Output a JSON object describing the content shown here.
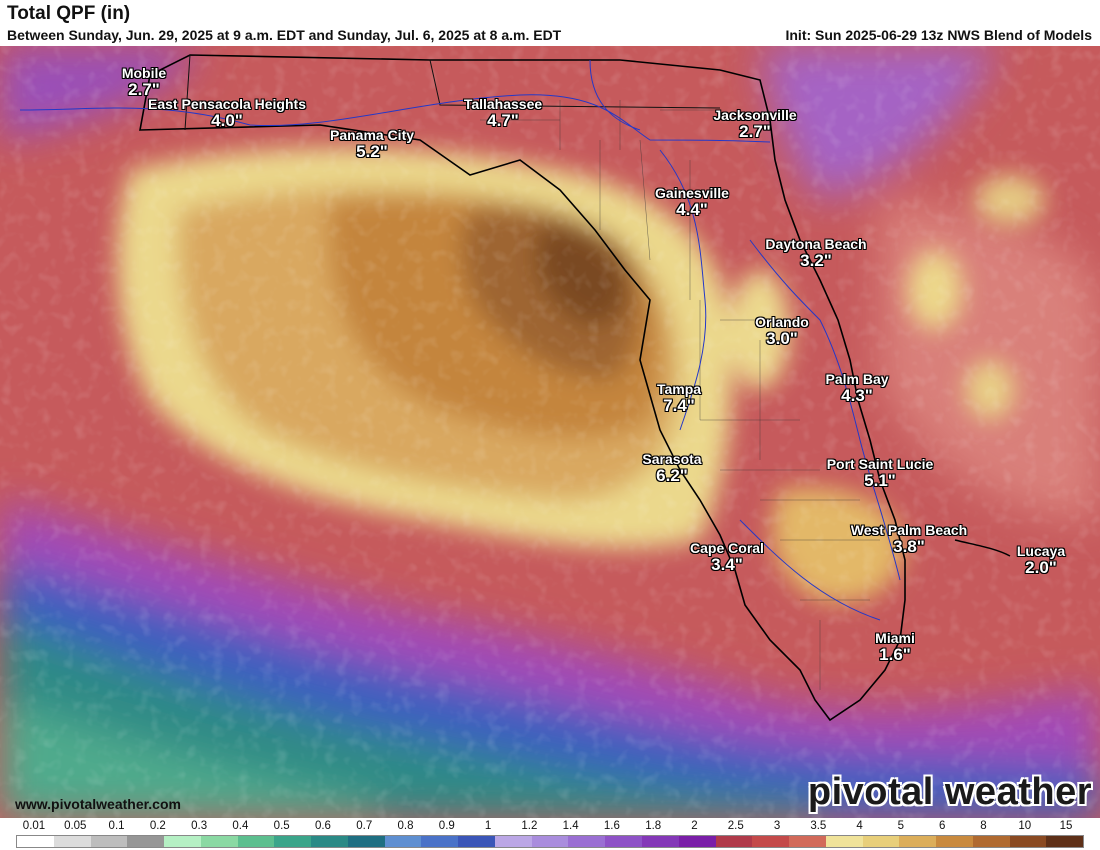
{
  "header": {
    "title": "Total QPF (in)",
    "subtitle": "Between Sunday, Jun. 29, 2025 at 9 a.m. EDT and Sunday, Jul. 6, 2025 at 8 a.m. EDT",
    "init": "Init: Sun 2025-06-29 13z NWS Blend of Models"
  },
  "cities": [
    {
      "name": "Mobile",
      "value": "2.7\""
    },
    {
      "name": "East Pensacola Heights",
      "value": "4.0\""
    },
    {
      "name": "Panama City",
      "value": "5.2\""
    },
    {
      "name": "Tallahassee",
      "value": "4.7\""
    },
    {
      "name": "Jacksonville",
      "value": "2.7\""
    },
    {
      "name": "Gainesville",
      "value": "4.4\""
    },
    {
      "name": "Daytona Beach",
      "value": "3.2\""
    },
    {
      "name": "Orlando",
      "value": "3.0\""
    },
    {
      "name": "Tampa",
      "value": "7.4\""
    },
    {
      "name": "Palm Bay",
      "value": "4.3\""
    },
    {
      "name": "Sarasota",
      "value": "6.2\""
    },
    {
      "name": "Port Saint Lucie",
      "value": "5.1\""
    },
    {
      "name": "West Palm Beach",
      "value": "3.8\""
    },
    {
      "name": "Cape Coral",
      "value": "3.4\""
    },
    {
      "name": "Lucaya",
      "value": "2.0\""
    },
    {
      "name": "Miami",
      "value": "1.6\""
    }
  ],
  "footer": {
    "website": "www.pivotalweather.com",
    "brand": "pivotal weather"
  },
  "legend": {
    "ticks": [
      "0.01",
      "0.05",
      "0.1",
      "0.2",
      "0.3",
      "0.4",
      "0.5",
      "0.6",
      "0.7",
      "0.8",
      "0.9",
      "1",
      "1.2",
      "1.4",
      "1.6",
      "1.8",
      "2",
      "2.5",
      "3",
      "3.5",
      "4",
      "5",
      "6",
      "8",
      "10",
      "15"
    ],
    "colors": [
      "#ffffff",
      "#dcdcdc",
      "#bdbdbd",
      "#969696",
      "#b5f0c4",
      "#8ad9a3",
      "#5cbf8f",
      "#3aa58a",
      "#2a8a86",
      "#1e6f82",
      "#5e8fd1",
      "#4a72c8",
      "#3b56b8",
      "#bba7e6",
      "#a98ddd",
      "#9a6fd3",
      "#8e52c7",
      "#8438b8",
      "#7a1fa8",
      "#b03a4a",
      "#c44a4a",
      "#d26a5a",
      "#f0e39a",
      "#e8cf7a",
      "#dcae5a",
      "#c98a3e",
      "#b06a30",
      "#8a4a22",
      "#5e3018"
    ]
  }
}
